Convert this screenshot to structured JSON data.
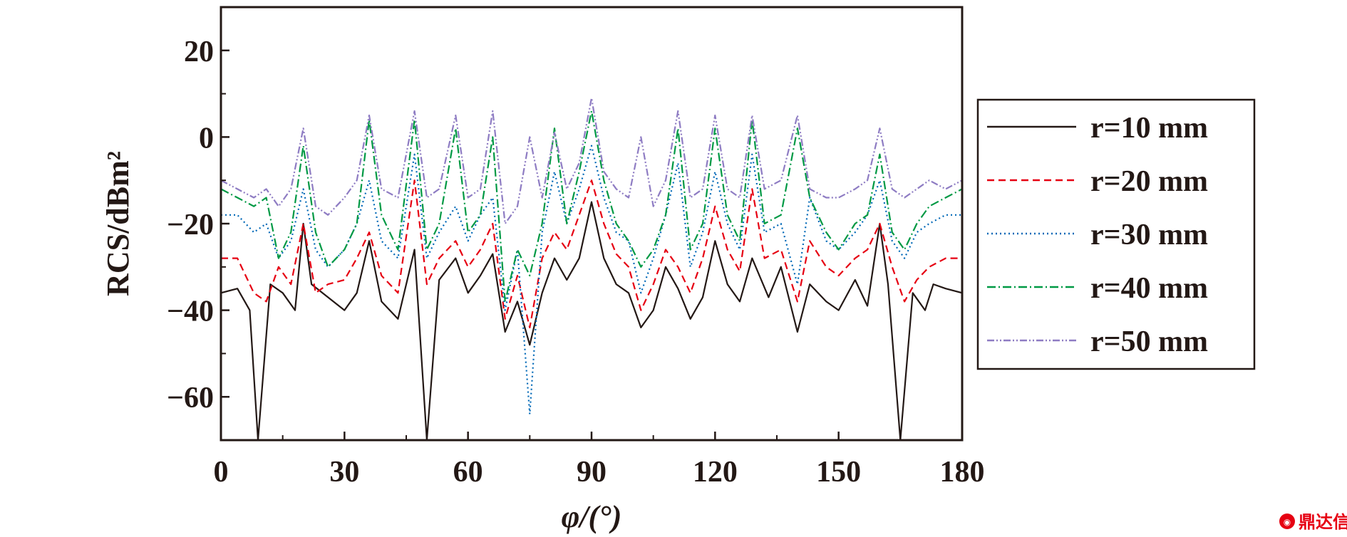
{
  "chart_data": {
    "type": "line",
    "title": "",
    "xlabel": "φ/(°)",
    "ylabel": "RCS/dBm²",
    "xlim": [
      0,
      180
    ],
    "ylim": [
      -70,
      30
    ],
    "xticks": [
      0,
      30,
      60,
      90,
      120,
      150,
      180
    ],
    "yticks": [
      -60,
      -40,
      -20,
      0,
      20
    ],
    "grid": false,
    "legend_position": "right",
    "series": [
      {
        "name": "r=10 mm",
        "color": "#231815",
        "dash": "solid",
        "x": [
          0,
          4,
          7,
          9,
          12,
          15,
          18,
          20,
          22,
          26,
          30,
          33,
          36,
          39,
          43,
          47,
          50,
          53,
          57,
          60,
          63,
          66,
          69,
          72,
          75,
          78,
          81,
          84,
          87,
          90,
          93,
          96,
          99,
          102,
          105,
          108,
          111,
          114,
          117,
          120,
          123,
          126,
          129,
          133,
          136,
          140,
          143,
          147,
          150,
          154,
          157,
          160,
          162,
          165,
          168,
          171,
          173,
          176,
          180
        ],
        "y": [
          -36,
          -35,
          -40,
          -70,
          -34,
          -36,
          -40,
          -20,
          -34,
          -37,
          -40,
          -36,
          -24,
          -38,
          -42,
          -26,
          -70,
          -33,
          -28,
          -36,
          -32,
          -27,
          -45,
          -38,
          -48,
          -36,
          -28,
          -33,
          -28,
          -15,
          -28,
          -34,
          -36,
          -44,
          -40,
          -30,
          -35,
          -42,
          -37,
          -24,
          -34,
          -38,
          -28,
          -37,
          -30,
          -45,
          -34,
          -38,
          -40,
          -33,
          -39,
          -20,
          -34,
          -70,
          -36,
          -40,
          -34,
          -35,
          -36
        ]
      },
      {
        "name": "r=20 mm",
        "color": "#e60012",
        "dash": "10,6",
        "x": [
          0,
          4,
          8,
          11,
          14,
          17,
          20,
          23,
          26,
          30,
          33,
          36,
          39,
          43,
          47,
          50,
          53,
          57,
          60,
          63,
          66,
          69,
          72,
          75,
          78,
          81,
          84,
          87,
          90,
          93,
          96,
          99,
          102,
          105,
          108,
          111,
          114,
          117,
          120,
          123,
          126,
          129,
          132,
          136,
          140,
          143,
          147,
          150,
          154,
          157,
          160,
          163,
          166,
          169,
          172,
          176,
          180
        ],
        "y": [
          -28,
          -28,
          -36,
          -38,
          -30,
          -34,
          -20,
          -36,
          -34,
          -33,
          -28,
          -22,
          -32,
          -36,
          -10,
          -34,
          -28,
          -24,
          -30,
          -26,
          -20,
          -42,
          -32,
          -44,
          -28,
          -22,
          -26,
          -18,
          -10,
          -20,
          -27,
          -30,
          -40,
          -34,
          -26,
          -30,
          -36,
          -28,
          -16,
          -26,
          -31,
          -12,
          -28,
          -26,
          -38,
          -24,
          -30,
          -32,
          -28,
          -26,
          -20,
          -30,
          -38,
          -33,
          -30,
          -28,
          -28
        ]
      },
      {
        "name": "r=30 mm",
        "color": "#0068b7",
        "dash": "2,4",
        "x": [
          0,
          4,
          8,
          11,
          14,
          17,
          20,
          23,
          26,
          30,
          33,
          36,
          39,
          43,
          47,
          50,
          53,
          57,
          60,
          63,
          66,
          69,
          72,
          75,
          78,
          81,
          84,
          87,
          90,
          93,
          96,
          99,
          102,
          105,
          108,
          111,
          114,
          117,
          120,
          123,
          126,
          129,
          132,
          136,
          140,
          143,
          147,
          150,
          154,
          157,
          160,
          163,
          166,
          169,
          172,
          176,
          180
        ],
        "y": [
          -18,
          -18,
          -22,
          -20,
          -28,
          -24,
          -12,
          -26,
          -30,
          -26,
          -20,
          -10,
          -24,
          -28,
          -4,
          -28,
          -22,
          -16,
          -24,
          -18,
          -14,
          -40,
          -26,
          -64,
          -22,
          -8,
          -20,
          -12,
          -2,
          -14,
          -22,
          -24,
          -36,
          -28,
          -18,
          -6,
          -30,
          -22,
          -8,
          -20,
          -26,
          -4,
          -22,
          -20,
          -34,
          -14,
          -24,
          -26,
          -22,
          -18,
          -10,
          -24,
          -28,
          -22,
          -20,
          -18,
          -18
        ]
      },
      {
        "name": "r=40 mm",
        "color": "#009944",
        "dash": "12,4,2,4",
        "x": [
          0,
          4,
          8,
          11,
          14,
          17,
          20,
          23,
          26,
          30,
          33,
          36,
          39,
          43,
          47,
          50,
          53,
          57,
          60,
          63,
          66,
          69,
          72,
          75,
          78,
          81,
          84,
          87,
          90,
          93,
          96,
          99,
          102,
          105,
          108,
          111,
          114,
          117,
          120,
          123,
          126,
          129,
          132,
          136,
          140,
          143,
          147,
          150,
          154,
          157,
          160,
          163,
          166,
          169,
          172,
          176,
          180
        ],
        "y": [
          -12,
          -14,
          -16,
          -14,
          -28,
          -22,
          -2,
          -22,
          -30,
          -26,
          -20,
          4,
          -18,
          -26,
          4,
          -26,
          -20,
          2,
          -22,
          -18,
          0,
          -38,
          -26,
          -32,
          -20,
          2,
          -20,
          -8,
          6,
          -10,
          -20,
          -24,
          -30,
          -26,
          -18,
          2,
          -26,
          -20,
          2,
          -18,
          -24,
          4,
          -20,
          -18,
          2,
          -14,
          -22,
          -26,
          -20,
          -18,
          -4,
          -22,
          -26,
          -20,
          -16,
          -14,
          -12
        ]
      },
      {
        "name": "r=50 mm",
        "color": "#8e7cc3",
        "dash": "10,3,2,3,2,3",
        "x": [
          0,
          4,
          8,
          11,
          14,
          17,
          20,
          23,
          26,
          30,
          33,
          36,
          39,
          43,
          47,
          50,
          53,
          57,
          60,
          63,
          66,
          69,
          72,
          75,
          78,
          81,
          84,
          87,
          90,
          93,
          96,
          99,
          102,
          105,
          108,
          111,
          114,
          117,
          120,
          123,
          126,
          129,
          132,
          136,
          140,
          143,
          147,
          150,
          154,
          157,
          160,
          163,
          166,
          169,
          172,
          176,
          180
        ],
        "y": [
          -10,
          -12,
          -14,
          -12,
          -16,
          -12,
          2,
          -16,
          -18,
          -14,
          -10,
          5,
          -12,
          -14,
          6,
          -14,
          -12,
          5,
          -14,
          -12,
          6,
          -20,
          -16,
          0,
          -14,
          1,
          -12,
          -6,
          9,
          -8,
          -12,
          -14,
          0,
          -16,
          -10,
          6,
          -14,
          -12,
          5,
          -12,
          -14,
          5,
          -12,
          -10,
          5,
          -12,
          -14,
          -14,
          -12,
          -10,
          2,
          -12,
          -14,
          -12,
          -10,
          -12,
          -10
        ]
      }
    ]
  },
  "watermark": {
    "text": "鼎达信",
    "icon": "logo-mark-icon",
    "color": "#e60012"
  }
}
